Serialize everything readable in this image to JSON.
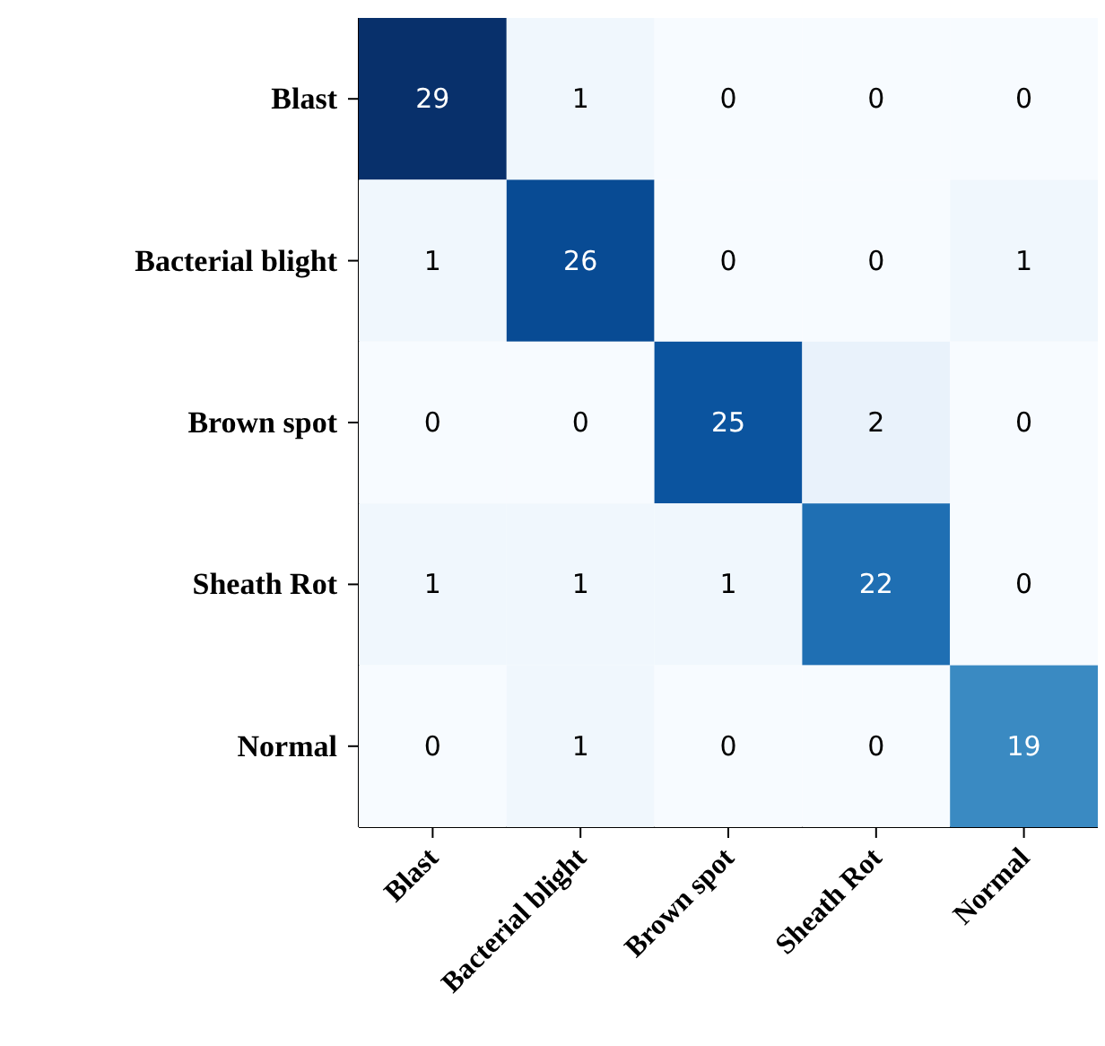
{
  "chart_data": {
    "type": "heatmap",
    "data_labels": true,
    "categories": [
      "Blast",
      "Bacterial blight",
      "Brown spot",
      "Sheath Rot",
      "Normal"
    ],
    "y_categories": [
      "Blast",
      "Bacterial blight",
      "Brown spot",
      "Sheath Rot",
      "Normal"
    ],
    "cells": [
      [
        29,
        1,
        0,
        0,
        0
      ],
      [
        1,
        26,
        0,
        0,
        1
      ],
      [
        0,
        0,
        25,
        2,
        0
      ],
      [
        1,
        1,
        1,
        22,
        0
      ],
      [
        0,
        1,
        0,
        0,
        19
      ]
    ]
  }
}
